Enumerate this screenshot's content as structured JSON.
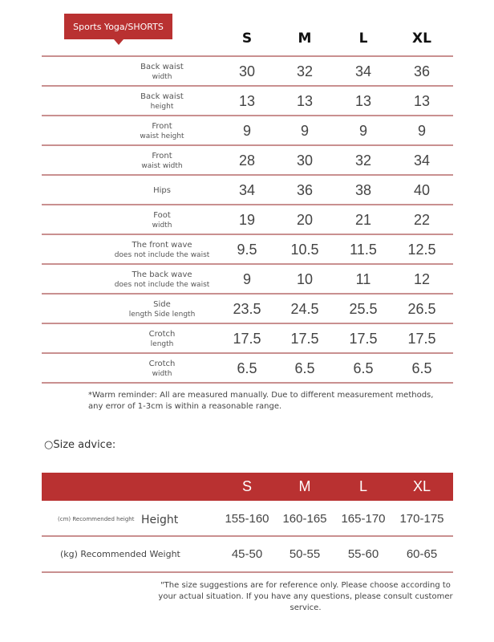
{
  "title": "Sports Yoga/SHORTS",
  "sizes": [
    "S",
    "M",
    "L",
    "XL"
  ],
  "rows": [
    {
      "label1": "Back waist",
      "label2": "width",
      "values": [
        "30",
        "32",
        "34",
        "36"
      ]
    },
    {
      "label1": "Back waist",
      "label2": "height",
      "values": [
        "13",
        "13",
        "13",
        "13"
      ]
    },
    {
      "label1": "Front",
      "label2": "waist height",
      "values": [
        "9",
        "9",
        "9",
        "9"
      ]
    },
    {
      "label1": "Front",
      "label2": "waist width",
      "values": [
        "28",
        "30",
        "32",
        "34"
      ]
    },
    {
      "label1": "Hips",
      "label2": "",
      "values": [
        "34",
        "36",
        "38",
        "40"
      ]
    },
    {
      "label1": "Foot",
      "label2": "width",
      "values": [
        "19",
        "20",
        "21",
        "22"
      ]
    },
    {
      "label1": "The front wave",
      "label2": "does not include the waist",
      "values": [
        "9.5",
        "10.5",
        "11.5",
        "12.5"
      ]
    },
    {
      "label1": "The back wave",
      "label2": "does not include the waist",
      "values": [
        "9",
        "10",
        "11",
        "12"
      ]
    },
    {
      "label1": "Side",
      "label2": "length Side length",
      "values": [
        "23.5",
        "24.5",
        "25.5",
        "26.5"
      ]
    },
    {
      "label1": "Crotch",
      "label2": "length",
      "values": [
        "17.5",
        "17.5",
        "17.5",
        "17.5"
      ]
    },
    {
      "label1": "Crotch",
      "label2": "width",
      "values": [
        "6.5",
        "6.5",
        "6.5",
        "6.5"
      ]
    }
  ],
  "warm_reminder": "*Warm reminder: All are measured manually. Due to different measurement methods, any error of 1-3cm is within a reasonable range.",
  "size_advice": {
    "heading": "Size advice:",
    "height_small_label": "(cm) Recommended height",
    "height_label": "Height",
    "height_values": [
      "155-160",
      "160-165",
      "165-170",
      "170-175"
    ],
    "weight_label": "(kg) Recommended Weight",
    "weight_values": [
      "45-50",
      "50-55",
      "55-60",
      "60-65"
    ],
    "note": "\"The size suggestions are for reference only. Please choose according to your actual situation. If you have any questions, please consult customer service."
  },
  "colors": {
    "accent": "#b93131",
    "divider": "#c99090"
  }
}
